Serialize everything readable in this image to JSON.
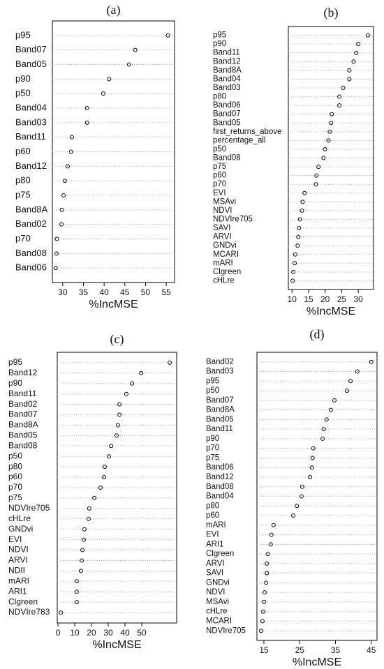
{
  "chart_data": [
    {
      "type": "dot",
      "title": "(a)",
      "xlabel": "%IncMSE",
      "categories": [
        "p95",
        "Band07",
        "Band05",
        "p90",
        "p50",
        "Band04",
        "Band03",
        "Band11",
        "p60",
        "Band12",
        "p80",
        "p75",
        "Band8A",
        "Band02",
        "p70",
        "Band08",
        "Band06"
      ],
      "values": [
        55.4,
        47.5,
        46,
        41.2,
        39.8,
        35.9,
        35.9,
        32.2,
        32,
        31.2,
        30.5,
        30.2,
        29.8,
        29.7,
        28.6,
        28.5,
        28.3
      ],
      "xlim": [
        27.5,
        57
      ],
      "xticks": [
        30,
        35,
        40,
        45,
        50,
        55
      ],
      "grid": true,
      "color": "#000000"
    },
    {
      "type": "dot",
      "title": "(b)",
      "xlabel": "%IncMSE",
      "categories": [
        "p95",
        "p90",
        "Band11",
        "Band12",
        "Band8A",
        "Band04",
        "Band03",
        "p80",
        "Band06",
        "Band07",
        "Band05",
        "first_returns_above",
        "percentage_all",
        "p50",
        "Band08",
        "p75",
        "p60",
        "p70",
        "EVI",
        "MSAvi",
        "NDVI",
        "NDVIre705",
        "SAVI",
        "ARVI",
        "GNDvi",
        "MCARI",
        "mARI",
        "Clgreen",
        "cHLre"
      ],
      "values": [
        32.9,
        30,
        29.4,
        28.6,
        27.3,
        27.3,
        25.4,
        24.3,
        24.3,
        22,
        21.8,
        21.4,
        21,
        20,
        19.5,
        18,
        17.4,
        17.2,
        13.8,
        13.2,
        13,
        12.4,
        12.1,
        11.9,
        11.7,
        11,
        10.8,
        10.4,
        10.2
      ],
      "xlim": [
        8.9,
        34.6
      ],
      "xticks": [
        10,
        15,
        20,
        25,
        30
      ],
      "grid": true,
      "color": "#000000"
    },
    {
      "type": "dot",
      "title": "(c)",
      "xlabel": "%IncMSE",
      "categories": [
        "p95",
        "Band12",
        "p90",
        "Band11",
        "Band02",
        "Band07",
        "Band8A",
        "Band05",
        "Band08",
        "p50",
        "p80",
        "p60",
        "p70",
        "p75",
        "NDVIre705",
        "cHLre",
        "GNDvi",
        "EVI",
        "NDVI",
        "ARVI",
        "NDII",
        "mARI",
        "ARI1",
        "Clgreen",
        "NDVIre783"
      ],
      "values": [
        66.7,
        49.6,
        44.2,
        40.8,
        36.7,
        36.7,
        35.8,
        35,
        31.7,
        30.4,
        27.9,
        27.5,
        25.4,
        21.7,
        18.7,
        18.3,
        15.8,
        15.4,
        14.6,
        14.2,
        13.7,
        11.2,
        11.2,
        11.2,
        1.7
      ],
      "xlim": [
        -0.4,
        70.8
      ],
      "xticks": [
        0,
        10,
        20,
        30,
        40,
        50
      ],
      "grid": true,
      "color": "#000000"
    },
    {
      "type": "dot",
      "title": "(d)",
      "xlabel": "%IncMSE",
      "categories": [
        "Band02",
        "Band03",
        "p95",
        "p50",
        "Band07",
        "Band8A",
        "Band05",
        "Band11",
        "p90",
        "p70",
        "p75",
        "Band06",
        "Band12",
        "Band08",
        "Band04",
        "p80",
        "p60",
        "mARI",
        "EVI",
        "ARI1",
        "Clgreen",
        "ARVI",
        "SAVI",
        "GNDvi",
        "NDVI",
        "MSAvi",
        "cHLre",
        "MCARI",
        "NDVIre705"
      ],
      "values": [
        45,
        41.1,
        39.2,
        38.2,
        34.7,
        33.7,
        32.5,
        31.7,
        31.4,
        28.8,
        28.6,
        28.4,
        27.9,
        25.7,
        25.5,
        24.2,
        23.2,
        17.7,
        17.1,
        16.9,
        16.1,
        15.8,
        15.8,
        15.6,
        15.2,
        15,
        14.8,
        14.6,
        14.2
      ],
      "xlim": [
        13.05,
        46.6
      ],
      "xticks": [
        15,
        25,
        35,
        45
      ],
      "grid": true,
      "color": "#000000"
    }
  ]
}
